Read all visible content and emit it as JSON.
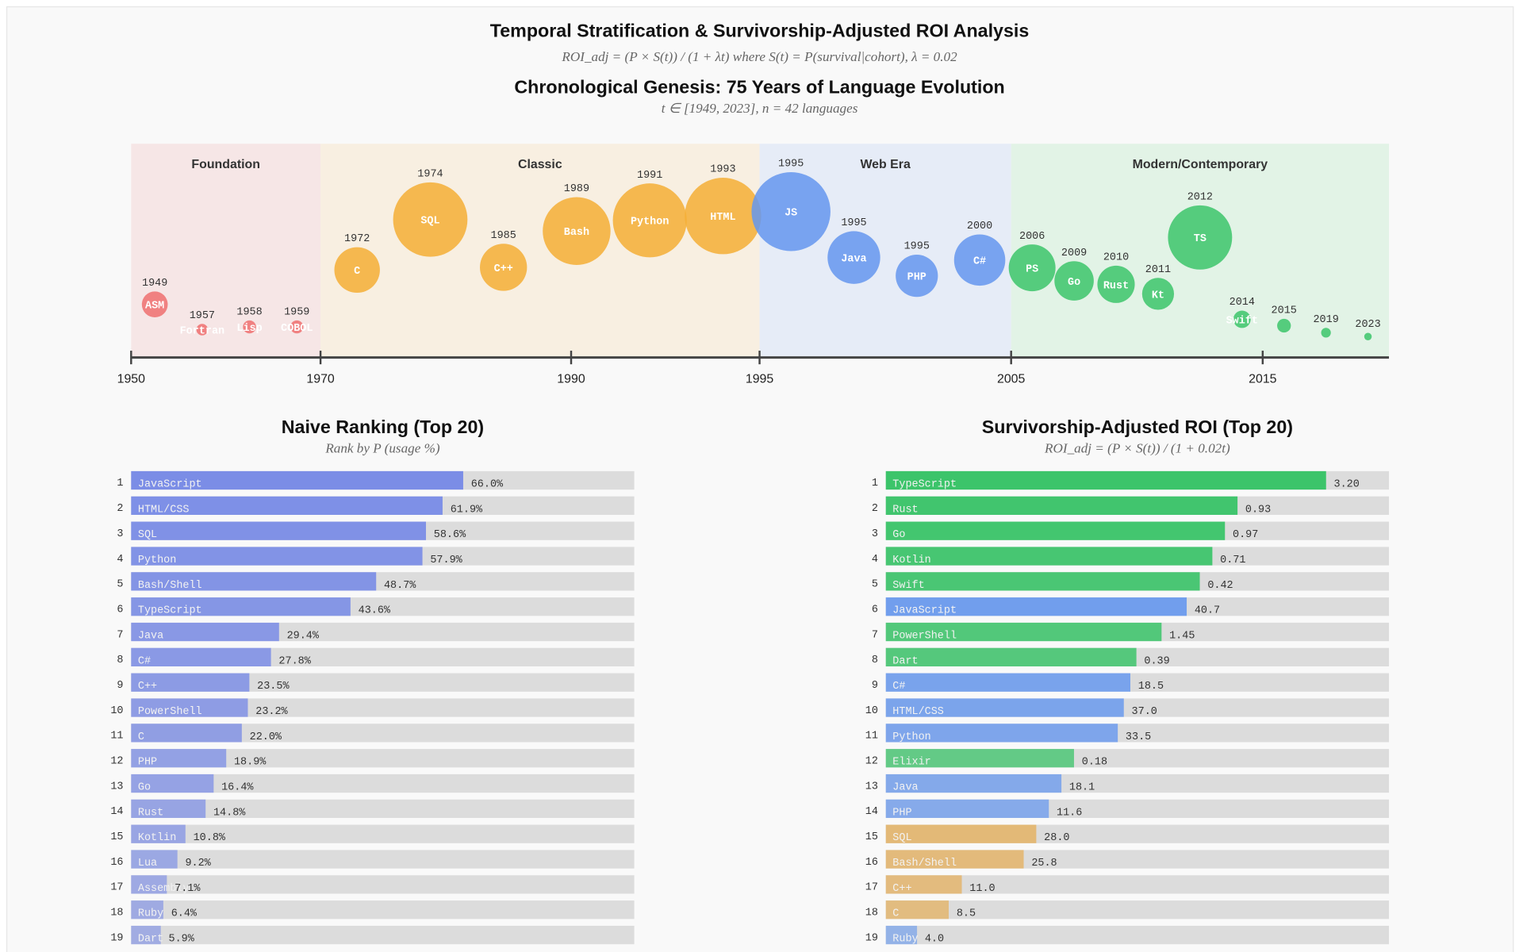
{
  "title": "Temporal Stratification & Survivorship-Adjusted ROI Analysis",
  "subtitle": "ROI_adj = (P × S(t)) / (1 + λt) where S(t) = P(survival|cohort), λ = 0.02",
  "chart_data": [
    {
      "type": "timeline",
      "title": "Chronological Genesis: 75 Years of Language Evolution",
      "subtitle": "t ∈ [1949, 2023], n = 42 languages",
      "xlim": [
        1950,
        2020
      ],
      "xticks": [
        1950,
        1970,
        1990,
        1995,
        2005,
        2015
      ],
      "eras": [
        {
          "name": "Foundation",
          "start": 1950,
          "end": 1970,
          "color": "#f6e6e6",
          "bubble_color": "#ef6f6f",
          "languages": [
            {
              "label": "ASM",
              "year": 1949,
              "size": 7.1
            },
            {
              "label": "Fortran",
              "year": 1957,
              "size": 1.4
            },
            {
              "label": "Lisp",
              "year": 1958,
              "size": 1.8
            },
            {
              "label": "COBOL",
              "year": 1959,
              "size": 1.8
            }
          ]
        },
        {
          "name": "Classic",
          "start": 1970,
          "end": 1995,
          "color": "#f8efe1",
          "bubble_color": "#f5ae35",
          "languages": [
            {
              "label": "C",
              "year": 1972,
              "size": 22.0
            },
            {
              "label": "SQL",
              "year": 1974,
              "size": 58.6
            },
            {
              "label": "C++",
              "year": 1985,
              "size": 23.5
            },
            {
              "label": "Bash",
              "year": 1989,
              "size": 48.7
            },
            {
              "label": "Python",
              "year": 1991,
              "size": 57.9
            },
            {
              "label": "HTML",
              "year": 1993,
              "size": 61.9
            }
          ]
        },
        {
          "name": "Web Era",
          "start": 1995,
          "end": 2005,
          "color": "#e6ecf7",
          "bubble_color": "#6496ef",
          "languages": [
            {
              "label": "JS",
              "year": 1995,
              "size": 66.0
            },
            {
              "label": "Java",
              "year": 1995,
              "size": 29.4
            },
            {
              "label": "PHP",
              "year": 1995,
              "size": 18.9
            },
            {
              "label": "C#",
              "year": 2000,
              "size": 27.8
            }
          ]
        },
        {
          "name": "Modern/Contemporary",
          "start": 2005,
          "end": 2020,
          "color": "#e2f3e6",
          "bubble_color": "#3cc46a",
          "languages": [
            {
              "label": "PS",
              "year": 2006,
              "size": 23.2
            },
            {
              "label": "Go",
              "year": 2009,
              "size": 16.4
            },
            {
              "label": "Rust",
              "year": 2010,
              "size": 14.8
            },
            {
              "label": "Kt",
              "year": 2011,
              "size": 10.8
            },
            {
              "label": "TS",
              "year": 2012,
              "size": 43.6
            },
            {
              "label": "Swift",
              "year": 2014,
              "size": 3.2
            },
            {
              "label": null,
              "year": 2015,
              "size": 2.0
            },
            {
              "label": null,
              "year": 2019,
              "size": 1.0
            },
            {
              "label": null,
              "year": 2023,
              "size": 0.6
            }
          ]
        }
      ]
    },
    {
      "type": "bar",
      "title": "Naive Ranking (Top 20)",
      "subtitle": "Rank by P (usage %)",
      "xlim": [
        0,
        100
      ],
      "color": "#7b8de6",
      "ranks": [
        1,
        2,
        3,
        4,
        5,
        6,
        7,
        8,
        9,
        10,
        11,
        12,
        13,
        14,
        15,
        16,
        17,
        18,
        19
      ],
      "categories": [
        "JavaScript",
        "HTML/CSS",
        "SQL",
        "Python",
        "Bash/Shell",
        "TypeScript",
        "Java",
        "C#",
        "C++",
        "PowerShell",
        "C",
        "PHP",
        "Go",
        "Rust",
        "Kotlin",
        "Lua",
        "Assembly",
        "Ruby",
        "Dart"
      ],
      "values": [
        66.0,
        61.9,
        58.6,
        57.9,
        48.7,
        43.6,
        29.4,
        27.8,
        23.5,
        23.2,
        22.0,
        18.9,
        16.4,
        14.8,
        10.8,
        9.2,
        7.1,
        6.4,
        5.9
      ],
      "value_labels": [
        "66.0%",
        "61.9%",
        "58.6%",
        "57.9%",
        "48.7%",
        "43.6%",
        "29.4%",
        "27.8%",
        "23.5%",
        "23.2%",
        "22.0%",
        "18.9%",
        "16.4%",
        "14.8%",
        "10.8%",
        "9.2%",
        "7.1%",
        "6.4%",
        "5.9%"
      ]
    },
    {
      "type": "bar",
      "title": "Survivorship-Adjusted ROI (Top 20)",
      "subtitle": "ROI_adj = (P × S(t)) / (1 + 0.02t)",
      "xlim": [
        0,
        100
      ],
      "ranks": [
        1,
        2,
        3,
        4,
        5,
        6,
        7,
        8,
        9,
        10,
        11,
        12,
        13,
        14,
        15,
        16,
        17,
        18,
        19
      ],
      "categories": [
        "TypeScript",
        "Rust",
        "Go",
        "Kotlin",
        "Swift",
        "JavaScript",
        "PowerShell",
        "Dart",
        "C#",
        "HTML/CSS",
        "Python",
        "Elixir",
        "Java",
        "PHP",
        "SQL",
        "Bash/Shell",
        "C++",
        "C",
        "Ruby"
      ],
      "values": [
        87.5,
        69.9,
        67.4,
        64.9,
        62.4,
        59.8,
        54.8,
        49.8,
        48.6,
        47.3,
        46.1,
        37.4,
        34.9,
        32.4,
        29.9,
        27.4,
        15.1,
        12.5,
        6.2
      ],
      "labels": [
        "3.20",
        "0.93",
        "0.97",
        "0.71",
        "0.42",
        "40.7",
        "1.45",
        "0.39",
        "18.5",
        "37.0",
        "33.5",
        "0.18",
        "18.1",
        "11.6",
        "28.0",
        "25.8",
        "11.0",
        "8.5",
        "4.0"
      ],
      "colors": [
        "#3cc46a",
        "#3cc46a",
        "#3cc46a",
        "#3cc46a",
        "#3cc46a",
        "#6496ef",
        "#3cc46a",
        "#3cc46a",
        "#6496ef",
        "#6496ef",
        "#6496ef",
        "#3cc46a",
        "#6496ef",
        "#6496ef",
        "#e6a94a",
        "#e6a94a",
        "#e6a94a",
        "#e6a94a",
        "#6496ef"
      ]
    }
  ]
}
